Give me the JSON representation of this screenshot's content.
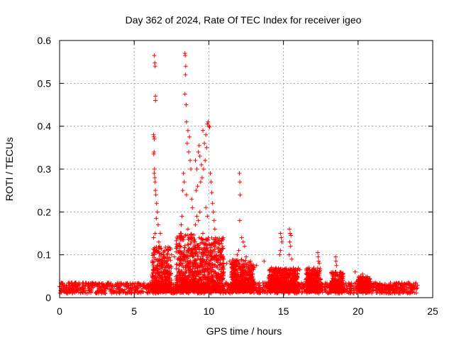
{
  "chart_data": {
    "type": "scatter",
    "title": "Day 362 of 2024, Rate Of TEC Index for receiver igeo",
    "xlabel": "GPS time / hours",
    "ylabel": "ROTI / TECUs",
    "xlim": [
      0,
      25
    ],
    "ylim": [
      0,
      0.6
    ],
    "xticks": [
      0,
      5,
      10,
      15,
      20,
      25
    ],
    "xtick_labels": [
      "0",
      "5",
      "10",
      "15",
      "20",
      "25"
    ],
    "yticks": [
      0,
      0.1,
      0.2,
      0.3,
      0.4,
      0.5,
      0.6
    ],
    "ytick_labels": [
      "0",
      "0.1",
      "0.2",
      "0.3",
      "0.4",
      "0.5",
      "0.6"
    ],
    "grid": true,
    "marker": "+",
    "color": "#ff0000",
    "baseline": {
      "x_range": [
        0,
        24
      ],
      "typical_min": 0.01,
      "typical_max": 0.035
    },
    "active_periods": [
      {
        "x_range": [
          6.2,
          7.5
        ],
        "typical_max": 0.12
      },
      {
        "x_range": [
          7.8,
          9.0
        ],
        "typical_max": 0.15
      },
      {
        "x_range": [
          9.0,
          11.0
        ],
        "typical_max": 0.14
      },
      {
        "x_range": [
          11.5,
          13.0
        ],
        "typical_max": 0.09
      },
      {
        "x_range": [
          14.0,
          16.0
        ],
        "typical_max": 0.07
      },
      {
        "x_range": [
          16.5,
          17.5
        ],
        "typical_max": 0.07
      },
      {
        "x_range": [
          18.2,
          19.0
        ],
        "typical_max": 0.06
      },
      {
        "x_range": [
          20.0,
          20.8
        ],
        "typical_max": 0.05
      }
    ],
    "points": [
      [
        6.35,
        0.565
      ],
      [
        6.38,
        0.548
      ],
      [
        6.4,
        0.54
      ],
      [
        6.42,
        0.47
      ],
      [
        6.43,
        0.46
      ],
      [
        6.3,
        0.38
      ],
      [
        6.32,
        0.375
      ],
      [
        6.35,
        0.37
      ],
      [
        6.33,
        0.34
      ],
      [
        6.31,
        0.335
      ],
      [
        6.36,
        0.3
      ],
      [
        6.34,
        0.29
      ],
      [
        6.38,
        0.28
      ],
      [
        6.4,
        0.27
      ],
      [
        6.42,
        0.25
      ],
      [
        6.45,
        0.24
      ],
      [
        6.5,
        0.22
      ],
      [
        6.55,
        0.2
      ],
      [
        6.48,
        0.185
      ],
      [
        6.6,
        0.17
      ],
      [
        6.4,
        0.15
      ],
      [
        6.3,
        0.14
      ],
      [
        6.65,
        0.13
      ],
      [
        6.7,
        0.12
      ],
      [
        6.75,
        0.15
      ],
      [
        8.4,
        0.57
      ],
      [
        8.42,
        0.565
      ],
      [
        8.45,
        0.54
      ],
      [
        8.43,
        0.52
      ],
      [
        8.4,
        0.475
      ],
      [
        8.48,
        0.45
      ],
      [
        8.5,
        0.41
      ],
      [
        8.6,
        0.39
      ],
      [
        8.7,
        0.375
      ],
      [
        8.55,
        0.36
      ],
      [
        8.65,
        0.34
      ],
      [
        8.75,
        0.32
      ],
      [
        8.8,
        0.3
      ],
      [
        8.3,
        0.29
      ],
      [
        8.35,
        0.27
      ],
      [
        8.25,
        0.25
      ],
      [
        8.5,
        0.24
      ],
      [
        8.85,
        0.23
      ],
      [
        8.9,
        0.21
      ],
      [
        8.2,
        0.19
      ],
      [
        8.15,
        0.17
      ],
      [
        8.6,
        0.16
      ],
      [
        8.1,
        0.15
      ],
      [
        8.9,
        0.14
      ],
      [
        9.0,
        0.13
      ],
      [
        9.2,
        0.3
      ],
      [
        9.1,
        0.32
      ],
      [
        9.3,
        0.34
      ],
      [
        9.35,
        0.355
      ],
      [
        9.4,
        0.33
      ],
      [
        9.5,
        0.31
      ],
      [
        9.6,
        0.39
      ],
      [
        9.7,
        0.36
      ],
      [
        9.8,
        0.38
      ],
      [
        9.9,
        0.405
      ],
      [
        9.95,
        0.41
      ],
      [
        10.0,
        0.4
      ],
      [
        10.05,
        0.398
      ],
      [
        9.85,
        0.35
      ],
      [
        9.75,
        0.32
      ],
      [
        9.65,
        0.3
      ],
      [
        9.55,
        0.28
      ],
      [
        9.45,
        0.27
      ],
      [
        9.25,
        0.26
      ],
      [
        9.15,
        0.25
      ],
      [
        10.1,
        0.29
      ],
      [
        10.15,
        0.27
      ],
      [
        10.2,
        0.245
      ],
      [
        10.25,
        0.22
      ],
      [
        10.3,
        0.2
      ],
      [
        10.35,
        0.18
      ],
      [
        9.9,
        0.19
      ],
      [
        9.8,
        0.21
      ],
      [
        10.4,
        0.16
      ],
      [
        10.45,
        0.14
      ],
      [
        9.4,
        0.2
      ],
      [
        9.3,
        0.18
      ],
      [
        9.2,
        0.19
      ],
      [
        9.1,
        0.17
      ],
      [
        9.6,
        0.15
      ],
      [
        12.05,
        0.29
      ],
      [
        12.08,
        0.27
      ],
      [
        12.1,
        0.24
      ],
      [
        12.07,
        0.18
      ],
      [
        12.2,
        0.14
      ],
      [
        12.3,
        0.13
      ],
      [
        12.4,
        0.12
      ],
      [
        12.0,
        0.11
      ],
      [
        11.9,
        0.1
      ],
      [
        12.5,
        0.095
      ],
      [
        14.8,
        0.15
      ],
      [
        14.85,
        0.14
      ],
      [
        14.9,
        0.13
      ],
      [
        14.8,
        0.11
      ],
      [
        14.75,
        0.1
      ],
      [
        15.4,
        0.16
      ],
      [
        15.45,
        0.15
      ],
      [
        15.5,
        0.145
      ],
      [
        15.42,
        0.13
      ],
      [
        15.48,
        0.12
      ],
      [
        15.38,
        0.1
      ],
      [
        15.55,
        0.09
      ],
      [
        17.3,
        0.105
      ],
      [
        17.32,
        0.095
      ],
      [
        17.35,
        0.085
      ],
      [
        17.4,
        0.08
      ],
      [
        18.5,
        0.095
      ],
      [
        18.52,
        0.085
      ],
      [
        18.55,
        0.075
      ],
      [
        13.2,
        0.075
      ],
      [
        13.7,
        0.085
      ],
      [
        14.2,
        0.07
      ],
      [
        16.1,
        0.065
      ],
      [
        19.8,
        0.06
      ],
      [
        20.3,
        0.055
      ],
      [
        10.8,
        0.1
      ],
      [
        11.0,
        0.09
      ],
      [
        11.2,
        0.08
      ],
      [
        11.4,
        0.085
      ],
      [
        7.3,
        0.11
      ],
      [
        7.5,
        0.1
      ],
      [
        7.7,
        0.095
      ],
      [
        7.9,
        0.12
      ],
      [
        8.0,
        0.11
      ],
      [
        9.0,
        0.12
      ]
    ]
  }
}
